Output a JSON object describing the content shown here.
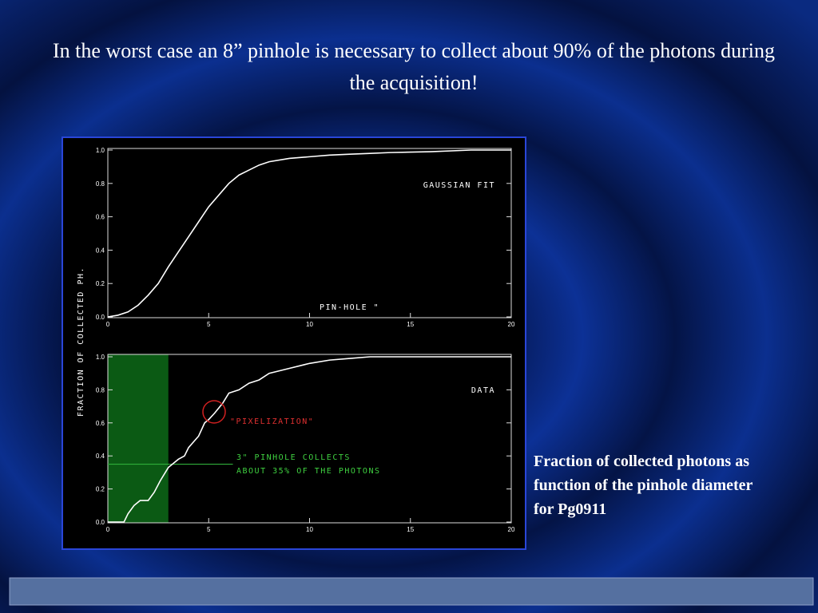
{
  "title": "In the worst case an 8” pinhole is necessary to collect about 90% of the photons during the acquisition!",
  "caption": "Fraction of collected photons as function of the pinhole diameter for Pg0911",
  "chart_data": [
    {
      "type": "line",
      "ylabel": "FRACTION OF COLLECTED PH.",
      "x": [
        0,
        0.5,
        1,
        1.5,
        2,
        2.5,
        3,
        3.5,
        4,
        4.5,
        5,
        5.5,
        6,
        6.5,
        7,
        7.5,
        8,
        9,
        10,
        11,
        12,
        13,
        14,
        16,
        18,
        20
      ],
      "series": [
        {
          "name": "GAUSSIAN FIT",
          "color": "#ffffff",
          "values": [
            0,
            0.01,
            0.03,
            0.07,
            0.13,
            0.2,
            0.3,
            0.39,
            0.48,
            0.57,
            0.66,
            0.73,
            0.8,
            0.85,
            0.88,
            0.91,
            0.93,
            0.95,
            0.96,
            0.97,
            0.975,
            0.98,
            0.985,
            0.99,
            1.0,
            1.0
          ]
        }
      ],
      "annotations": [
        "PIN-HOLE \""
      ],
      "xlim": [
        0,
        20
      ],
      "ylim": [
        0,
        1
      ],
      "xticks": [
        0,
        5,
        10,
        15,
        20
      ],
      "yticks": [
        {
          "value": 0,
          "label": "0.0"
        },
        {
          "value": 0.2,
          "label": "0.2"
        },
        {
          "value": 0.4,
          "label": "0.4"
        },
        {
          "value": 0.6,
          "label": "0.6"
        },
        {
          "value": 0.8,
          "label": "0.8"
        },
        {
          "value": 1,
          "label": "1.0"
        }
      ]
    },
    {
      "type": "line",
      "x": [
        0,
        0.8,
        1,
        1.3,
        1.6,
        2,
        2.3,
        2.6,
        3,
        3.5,
        3.8,
        4,
        4.5,
        4.8,
        5,
        5.3,
        5.7,
        6,
        6.5,
        7,
        7.5,
        8,
        9,
        10,
        11,
        12,
        13,
        20
      ],
      "series": [
        {
          "name": "DATA",
          "color": "#ffffff",
          "values": [
            0,
            0,
            0.05,
            0.1,
            0.13,
            0.13,
            0.18,
            0.25,
            0.33,
            0.38,
            0.4,
            0.45,
            0.52,
            0.6,
            0.62,
            0.66,
            0.72,
            0.78,
            0.8,
            0.84,
            0.86,
            0.9,
            0.93,
            0.96,
            0.98,
            0.99,
            1.0,
            1.0
          ]
        }
      ],
      "highlight_x": [
        0,
        3
      ],
      "highlight_y": 0.35,
      "annotations": [
        "\"PIXELIZATION\"",
        "3\" PINHOLE COLLECTS",
        "ABOUT 35% OF THE PHOTONS"
      ],
      "xlim": [
        0,
        20
      ],
      "ylim": [
        0,
        1
      ],
      "xticks": [
        0,
        5,
        10,
        15,
        20
      ],
      "yticks": [
        {
          "value": 0,
          "label": "0.0"
        },
        {
          "value": 0.2,
          "label": "0.2"
        },
        {
          "value": 0.4,
          "label": "0.4"
        },
        {
          "value": 0.6,
          "label": "0.6"
        },
        {
          "value": 0.8,
          "label": "0.8"
        },
        {
          "value": 1,
          "label": "1.0"
        }
      ]
    }
  ]
}
